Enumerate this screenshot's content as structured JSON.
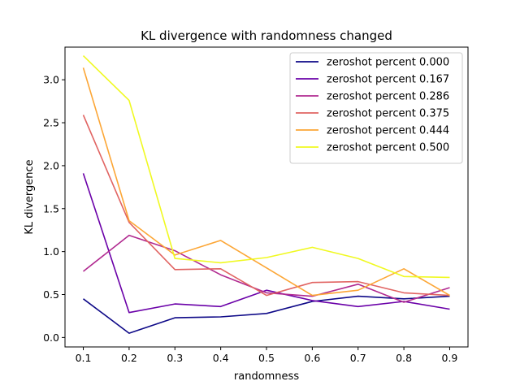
{
  "chart_data": {
    "type": "line",
    "title": "KL divergence with randomness changed",
    "xlabel": "randomness",
    "ylabel": "KL divergence",
    "x": [
      0.1,
      0.2,
      0.3,
      0.4,
      0.5,
      0.6,
      0.7,
      0.8,
      0.9
    ],
    "xticks": [
      "0.1",
      "0.2",
      "0.3",
      "0.4",
      "0.5",
      "0.6",
      "0.7",
      "0.8",
      "0.9"
    ],
    "yticks": [
      "0.0",
      "0.5",
      "1.0",
      "1.5",
      "2.0",
      "2.5",
      "3.0"
    ],
    "xlim": [
      0.06,
      0.94
    ],
    "ylim": [
      -0.11,
      3.38
    ],
    "legend": "top-right",
    "series": [
      {
        "name": "zeroshot percent 0.000",
        "color": "#0d0887",
        "values": [
          0.45,
          0.05,
          0.23,
          0.24,
          0.28,
          0.42,
          0.48,
          0.45,
          0.48
        ]
      },
      {
        "name": "zeroshot percent 0.167",
        "color": "#6a00a8",
        "values": [
          1.91,
          0.29,
          0.39,
          0.36,
          0.55,
          0.43,
          0.36,
          0.42,
          0.33
        ]
      },
      {
        "name": "zeroshot percent 0.286",
        "color": "#b12a90",
        "values": [
          0.77,
          1.19,
          1.01,
          0.73,
          0.52,
          0.48,
          0.62,
          0.41,
          0.58
        ]
      },
      {
        "name": "zeroshot percent 0.375",
        "color": "#e16462",
        "values": [
          2.59,
          1.34,
          0.79,
          0.8,
          0.49,
          0.64,
          0.65,
          0.52,
          0.49
        ]
      },
      {
        "name": "zeroshot percent 0.444",
        "color": "#fca636",
        "values": [
          3.14,
          1.36,
          0.96,
          1.13,
          0.81,
          0.49,
          0.55,
          0.8,
          0.49
        ]
      },
      {
        "name": "zeroshot percent 0.500",
        "color": "#f0f921",
        "values": [
          3.28,
          2.76,
          0.92,
          0.87,
          0.93,
          1.05,
          0.92,
          0.71,
          0.7
        ]
      }
    ]
  }
}
